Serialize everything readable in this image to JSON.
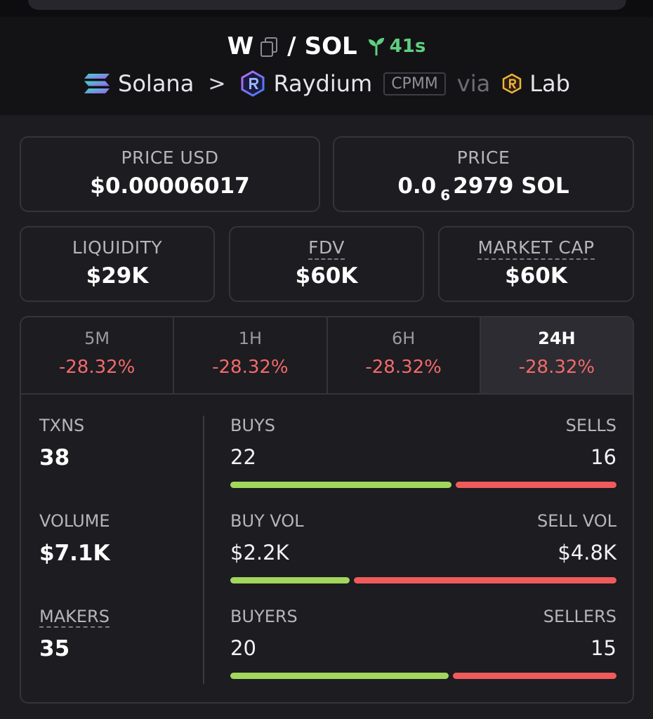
{
  "header": {
    "base_symbol": "W",
    "separator": "/",
    "quote_symbol": "SOL",
    "age": "41s",
    "chain": "Solana",
    "chevron": ">",
    "dex": "Raydium",
    "pool_type": "CPMM",
    "via": "via",
    "launchpad": "Lab"
  },
  "cards": {
    "price_usd": {
      "label": "PRICE USD",
      "value": "$0.00006017"
    },
    "price_native": {
      "label": "PRICE",
      "prefix": "0.0",
      "zeros": "6",
      "suffix": "2979 SOL"
    },
    "liquidity": {
      "label": "LIQUIDITY",
      "value": "$29K"
    },
    "fdv": {
      "label": "FDV",
      "value": "$60K"
    },
    "market_cap": {
      "label": "MARKET CAP",
      "value": "$60K"
    }
  },
  "tabs": [
    {
      "label": "5M",
      "change": "-28.32%"
    },
    {
      "label": "1H",
      "change": "-28.32%"
    },
    {
      "label": "6H",
      "change": "-28.32%"
    },
    {
      "label": "24H",
      "change": "-28.32%",
      "active": true
    }
  ],
  "stats": {
    "txns": {
      "label": "TXNS",
      "value": "38"
    },
    "volume": {
      "label": "VOLUME",
      "value": "$7.1K"
    },
    "makers": {
      "label": "MAKERS",
      "value": "35"
    }
  },
  "splits": {
    "txns": {
      "left_label": "BUYS",
      "left_value": "22",
      "right_label": "SELLS",
      "right_value": "16",
      "buy_fraction": 0.579
    },
    "volume": {
      "left_label": "BUY VOL",
      "left_value": "$2.2K",
      "right_label": "SELL VOL",
      "right_value": "$4.8K",
      "buy_fraction": 0.314
    },
    "makers": {
      "left_label": "BUYERS",
      "left_value": "20",
      "right_label": "SELLERS",
      "right_value": "15",
      "buy_fraction": 0.571
    }
  },
  "colors": {
    "positive": "#a3d65c",
    "negative": "#ef5b5b",
    "age": "#5fcf80",
    "background": "#1c1c21"
  }
}
